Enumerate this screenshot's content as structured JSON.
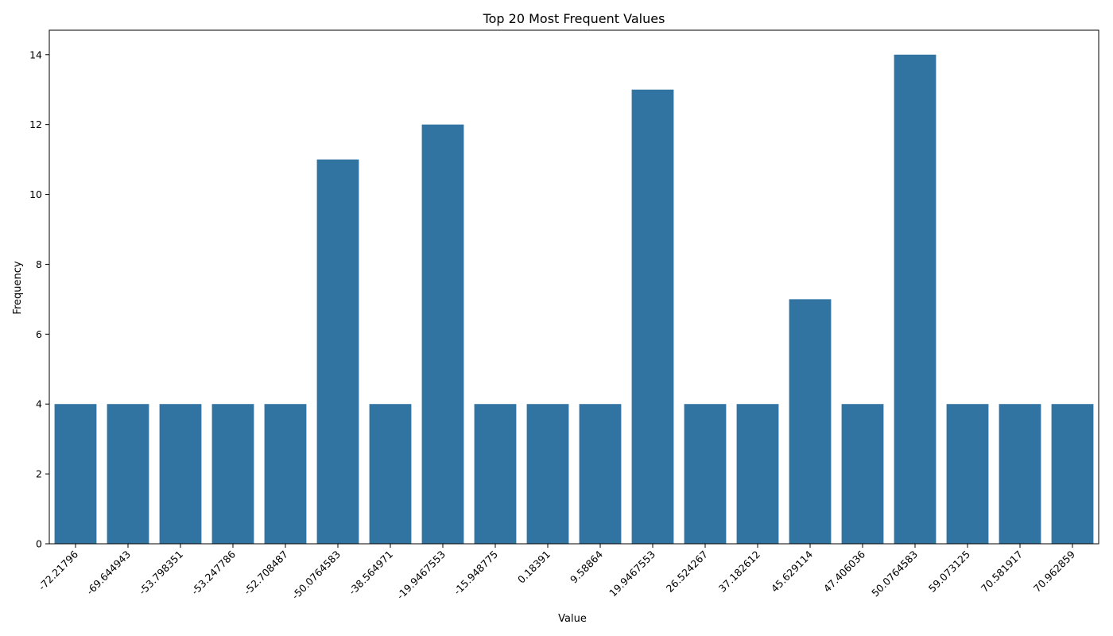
{
  "chart_data": {
    "type": "bar",
    "title": "Top 20 Most Frequent Values",
    "xlabel": "Value",
    "ylabel": "Frequency",
    "ylim": [
      0,
      14.7
    ],
    "yticks": [
      0,
      2,
      4,
      6,
      8,
      10,
      12,
      14
    ],
    "grid": false,
    "bar_color": "#3274a1",
    "categories": [
      "-72.21796",
      "-69.644943",
      "-53.798351",
      "-53.247786",
      "-52.708487",
      "-50.0764583",
      "-38.564971",
      "-19.9467553",
      "-15.948775",
      "0.18391",
      "9.58864",
      "19.9467553",
      "26.524267",
      "37.182612",
      "45.629114",
      "47.406036",
      "50.0764583",
      "59.073125",
      "70.581917",
      "70.962859"
    ],
    "values": [
      4,
      4,
      4,
      4,
      4,
      11,
      4,
      12,
      4,
      4,
      4,
      13,
      4,
      4,
      7,
      4,
      14,
      4,
      4,
      4
    ]
  }
}
